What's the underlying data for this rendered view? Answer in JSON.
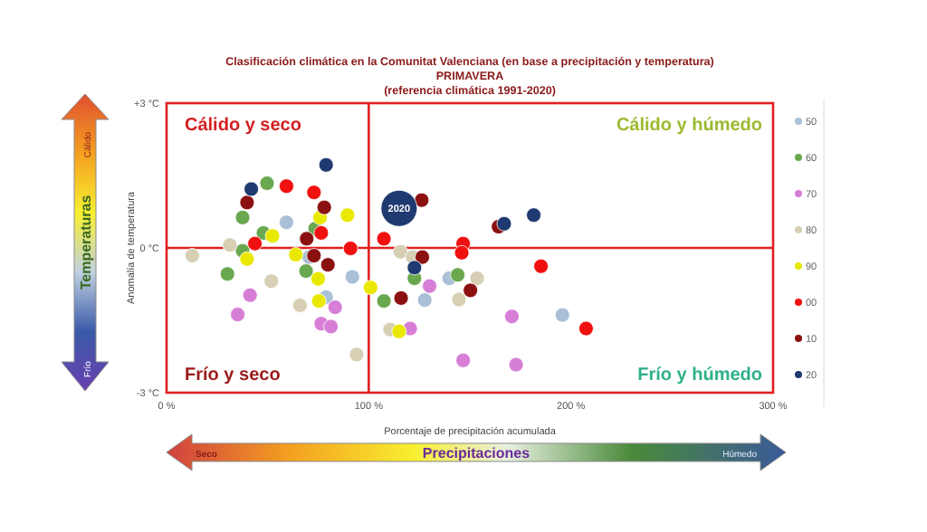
{
  "chart_data": {
    "type": "bubble",
    "title": "Clasificación climática en la Comunitat Valenciana (en base a precipitación y temperatura)",
    "subtitle": "PRIMAVERA\n(referencia climática 1991-2020)",
    "xlabel": "Porcentaje de precipitación acumulada",
    "ylabel": "Anomalía de temperatura",
    "xlim": [
      0,
      300
    ],
    "xticks": [
      {
        "value": 0,
        "label": "0 %"
      },
      {
        "value": 100,
        "label": "100 %"
      },
      {
        "value": 200,
        "label": "200 %"
      },
      {
        "value": 300,
        "label": "300 %"
      }
    ],
    "ylim": [
      -3,
      3
    ],
    "yticks": [
      {
        "value": -3,
        "label": "-3 °C"
      },
      {
        "value": 0,
        "label": "0 °C"
      },
      {
        "value": 3,
        "label": "+3 °C"
      }
    ],
    "grid": false,
    "legend": "right",
    "marker": "circle",
    "ref_lines": [
      {
        "axis": "x",
        "value": 100,
        "color": "#e02020"
      },
      {
        "axis": "y",
        "value": 0,
        "color": "#e02020"
      }
    ],
    "annotations": [
      "Cálido y seco",
      "Cálido y húmedo",
      "Frío y seco",
      "Frío y húmedo",
      "Temperaturas",
      "Cálido",
      "Frío",
      "Precipitaciones",
      "Seco",
      "Húmedo",
      {
        "text": "2020",
        "x": 115,
        "y": 0.82
      }
    ],
    "series": [
      {
        "name": "50",
        "color": "#a9c0d6",
        "x": [
          59.3,
          70.5,
          91.9,
          78.9,
          139.8,
          127.7,
          195.8
        ],
        "values": [
          0.53,
          -0.19,
          -0.6,
          -1.02,
          -0.63,
          -1.08,
          -1.39
        ],
        "sizes": [
          0.16,
          0.16,
          0.16,
          0.16,
          0.16,
          0.16,
          0.16
        ]
      },
      {
        "name": "60",
        "color": "#6aa84f",
        "x": [
          49.7,
          37.6,
          47.9,
          37.6,
          30.1,
          73.5,
          69,
          122.6,
          144,
          107.5
        ],
        "values": [
          1.34,
          0.63,
          0.31,
          -0.06,
          -0.54,
          0.4,
          -0.48,
          -0.63,
          -0.56,
          -1.1
        ],
        "sizes": [
          0.16,
          0.16,
          0.16,
          0.16,
          0.16,
          0.16,
          0.16,
          0.16,
          0.16,
          0.16
        ]
      },
      {
        "name": "70",
        "color": "#d77fd7",
        "x": [
          41.3,
          35.2,
          83.4,
          76.5,
          81.3,
          130.1,
          120.5,
          170.8,
          146.7,
          172.9
        ],
        "values": [
          -0.98,
          -1.38,
          -1.23,
          -1.57,
          -1.63,
          -0.79,
          -1.67,
          -1.42,
          -2.33,
          -2.42
        ],
        "sizes": [
          0.16,
          0.16,
          0.16,
          0.16,
          0.16,
          0.16,
          0.16,
          0.16,
          0.16,
          0.16
        ]
      },
      {
        "name": "80",
        "color": "#d6cfb4",
        "x": [
          12.7,
          31.3,
          51.8,
          66,
          115.7,
          121.7,
          153.6,
          144.6,
          110.5,
          94
        ],
        "values": [
          -0.16,
          0.06,
          -0.69,
          -1.19,
          -0.08,
          -0.19,
          -0.63,
          -1.07,
          -1.69,
          -2.21
        ],
        "sizes": [
          0.16,
          0.16,
          0.16,
          0.16,
          0.16,
          0.16,
          0.16,
          0.16,
          0.16,
          0.16
        ]
      },
      {
        "name": "90",
        "color": "#e8e800",
        "x": [
          89.5,
          75.9,
          52.4,
          39.8,
          63.9,
          75,
          75.3,
          100.9,
          115
        ],
        "values": [
          0.68,
          0.63,
          0.25,
          -0.23,
          -0.14,
          -0.64,
          -1.1,
          -0.82,
          -1.73
        ],
        "sizes": [
          0.16,
          0.16,
          0.16,
          0.16,
          0.16,
          0.16,
          0.16,
          0.16,
          0.16
        ]
      },
      {
        "name": "00",
        "color": "#f01010",
        "x": [
          59.3,
          72.9,
          76.5,
          43.7,
          91,
          107.5,
          146.7,
          146,
          185.2,
          207.5
        ],
        "values": [
          1.28,
          1.15,
          0.31,
          0.09,
          -0.01,
          0.19,
          0.09,
          -0.1,
          -0.38,
          -1.67
        ],
        "sizes": [
          0.16,
          0.16,
          0.16,
          0.16,
          0.16,
          0.16,
          0.16,
          0.16,
          0.16,
          0.16
        ]
      },
      {
        "name": "10",
        "color": "#8b1010",
        "x": [
          39.8,
          78,
          69.3,
          72.9,
          79.8,
          126.2,
          126.5,
          164.2,
          150.3,
          116
        ],
        "values": [
          0.94,
          0.84,
          0.19,
          -0.16,
          -0.35,
          0.99,
          -0.19,
          0.44,
          -0.88,
          -1.04
        ],
        "sizes": [
          0.16,
          0.16,
          0.16,
          0.16,
          0.16,
          0.16,
          0.16,
          0.16,
          0.16,
          0.16
        ]
      },
      {
        "name": "20",
        "color": "#1f3a70",
        "x": [
          78.9,
          41.9,
          167,
          181.6,
          122.6,
          115
        ],
        "values": [
          1.72,
          1.22,
          0.5,
          0.68,
          -0.41,
          0.82
        ],
        "sizes": [
          0.16,
          0.16,
          0.16,
          0.16,
          0.16,
          1
        ]
      }
    ]
  }
}
